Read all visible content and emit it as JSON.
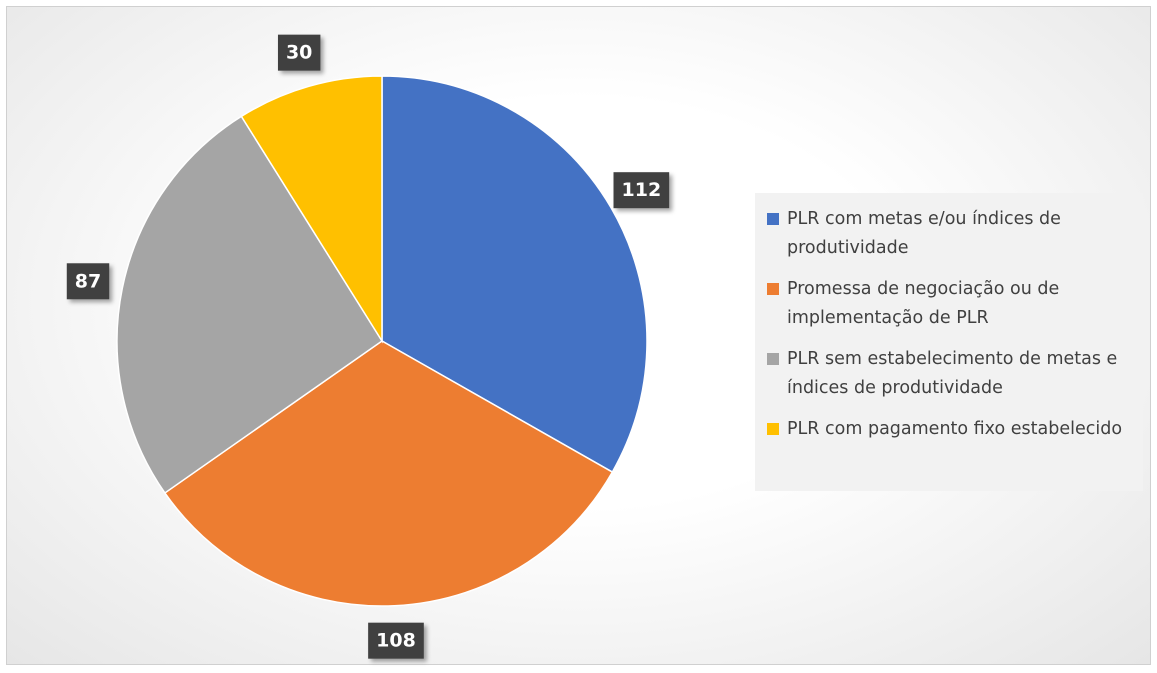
{
  "chart_data": {
    "type": "pie",
    "categories": [
      "PLR com metas e/ou índices de produtividade",
      "Promessa de negociação ou de implementação de PLR",
      "PLR sem estabelecimento de metas e índices de produtividade",
      "PLR com pagamento fixo estabelecido"
    ],
    "values": [
      112,
      108,
      87,
      30
    ],
    "colors": [
      "#4472c4",
      "#ed7d31",
      "#a5a5a5",
      "#ffc000"
    ],
    "legend": "right"
  }
}
